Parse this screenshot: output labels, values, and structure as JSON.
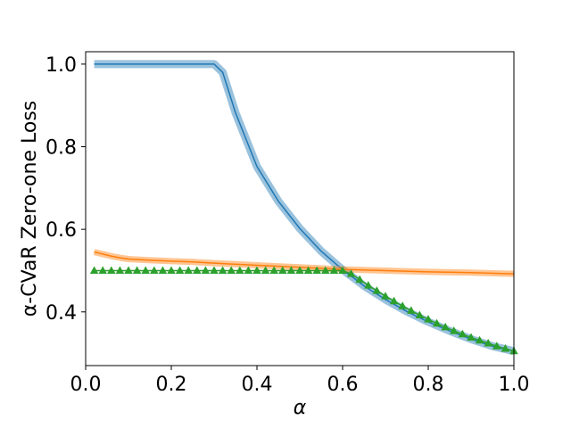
{
  "chart_data": {
    "type": "line",
    "title": "",
    "xlabel": "α",
    "ylabel": "α-CVaR Zero-one Loss",
    "xlim": [
      0.0,
      1.0
    ],
    "ylim": [
      0.27,
      1.03
    ],
    "xticks": [
      0.0,
      0.2,
      0.4,
      0.6,
      0.8,
      1.0
    ],
    "xtick_labels": [
      "0.0",
      "0.2",
      "0.4",
      "0.6",
      "0.8",
      "1.0"
    ],
    "yticks": [
      0.4,
      0.6,
      0.8,
      1.0
    ],
    "ytick_labels": [
      "0.4",
      "0.6",
      "0.8",
      "1.0"
    ],
    "grid": false,
    "series": [
      {
        "color": "#1f77b4",
        "marker": "none",
        "band": true,
        "x": [
          0.02,
          0.1,
          0.2,
          0.3,
          0.32,
          0.35,
          0.4,
          0.45,
          0.5,
          0.55,
          0.6,
          0.625,
          0.65,
          0.7,
          0.75,
          0.8,
          0.85,
          0.9,
          0.95,
          1.0
        ],
        "y": [
          1.0,
          1.0,
          1.0,
          1.0,
          0.98,
          0.882,
          0.752,
          0.668,
          0.602,
          0.547,
          0.502,
          0.483,
          0.463,
          0.43,
          0.401,
          0.376,
          0.354,
          0.334,
          0.317,
          0.305
        ]
      },
      {
        "color": "#ff7f0e",
        "marker": "none",
        "band": true,
        "x": [
          0.02,
          0.04,
          0.06,
          0.08,
          0.1,
          0.15,
          0.2,
          0.25,
          0.3,
          0.4,
          0.5,
          0.6,
          0.7,
          0.8,
          0.9,
          1.0
        ],
        "y": [
          0.545,
          0.54,
          0.535,
          0.531,
          0.528,
          0.525,
          0.523,
          0.521,
          0.518,
          0.513,
          0.508,
          0.503,
          0.5,
          0.497,
          0.495,
          0.492
        ]
      },
      {
        "color": "#2ca02c",
        "marker": "triangle",
        "band": false,
        "x": [
          0.02,
          0.04,
          0.06,
          0.08,
          0.1,
          0.12,
          0.14,
          0.16,
          0.18,
          0.2,
          0.22,
          0.24,
          0.26,
          0.28,
          0.3,
          0.32,
          0.34,
          0.36,
          0.38,
          0.4,
          0.42,
          0.44,
          0.46,
          0.48,
          0.5,
          0.52,
          0.54,
          0.56,
          0.58,
          0.6,
          0.62,
          0.64,
          0.66,
          0.68,
          0.7,
          0.72,
          0.74,
          0.76,
          0.78,
          0.8,
          0.82,
          0.84,
          0.86,
          0.88,
          0.9,
          0.92,
          0.94,
          0.96,
          0.98,
          1.0
        ],
        "y": [
          0.5,
          0.5,
          0.5,
          0.5,
          0.5,
          0.5,
          0.5,
          0.5,
          0.5,
          0.5,
          0.5,
          0.5,
          0.5,
          0.5,
          0.5,
          0.5,
          0.5,
          0.5,
          0.5,
          0.5,
          0.5,
          0.5,
          0.5,
          0.5,
          0.5,
          0.5,
          0.5,
          0.5,
          0.5,
          0.5,
          0.492,
          0.478,
          0.464,
          0.451,
          0.438,
          0.426,
          0.414,
          0.403,
          0.392,
          0.382,
          0.372,
          0.363,
          0.354,
          0.346,
          0.338,
          0.331,
          0.324,
          0.317,
          0.311,
          0.305
        ]
      }
    ]
  }
}
